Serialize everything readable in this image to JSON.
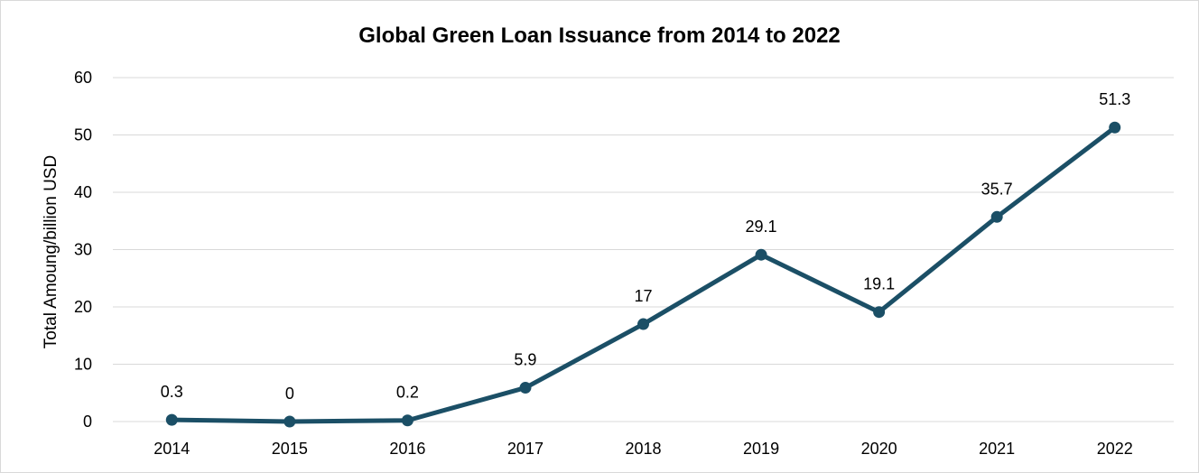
{
  "chart_data": {
    "type": "line",
    "title": "Global Green Loan Issuance from 2014 to 2022",
    "xlabel": "",
    "ylabel": "Total Amoung/billion USD",
    "categories": [
      "2014",
      "2015",
      "2016",
      "2017",
      "2018",
      "2019",
      "2020",
      "2021",
      "2022"
    ],
    "series": [
      {
        "values": [
          0.3,
          0,
          0.2,
          5.9,
          17,
          29.1,
          19.1,
          35.7,
          51.3
        ]
      }
    ],
    "ylim": [
      0,
      60
    ],
    "yticks": [
      0,
      10,
      20,
      30,
      40,
      50,
      60
    ],
    "grid": true,
    "legend": "none",
    "data_labels": true,
    "colors": {
      "line": "#1b4f66",
      "grid": "#d9d9d9"
    }
  }
}
